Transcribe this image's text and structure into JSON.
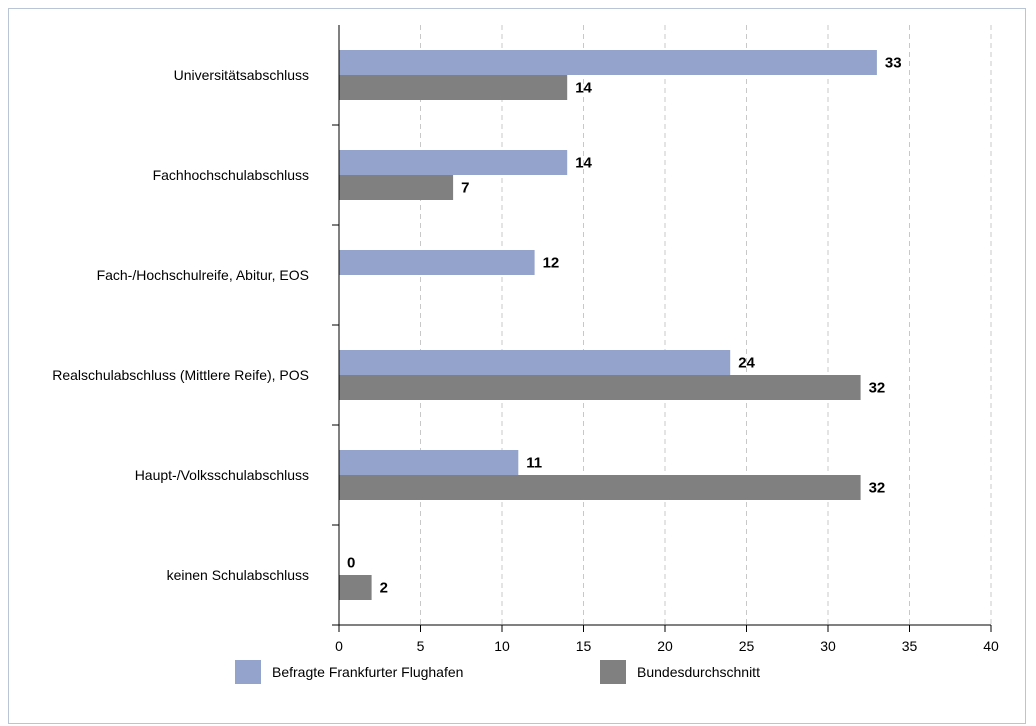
{
  "chart_data": {
    "type": "bar",
    "orientation": "horizontal",
    "categories": [
      "Universitätsabschluss",
      "Fachhochschulabschluss",
      "Fach-/Hochschulreife, Abitur, EOS",
      "Realschulabschluss (Mittlere Reife), POS",
      "Haupt-/Volksschulabschluss",
      "keinen Schulabschluss"
    ],
    "series": [
      {
        "name": "Befragte Frankfurter Flughafen",
        "color": "#94a3cb",
        "values": [
          33,
          14,
          12,
          24,
          11,
          0
        ]
      },
      {
        "name": "Bundesdurchschnitt",
        "color": "#808080",
        "values": [
          14,
          7,
          null,
          32,
          32,
          2
        ]
      }
    ],
    "xlim": [
      0,
      40
    ],
    "xticks": [
      0,
      5,
      10,
      15,
      20,
      25,
      30,
      35,
      40
    ],
    "grid": "vertical-dashed",
    "legend_position": "bottom"
  }
}
